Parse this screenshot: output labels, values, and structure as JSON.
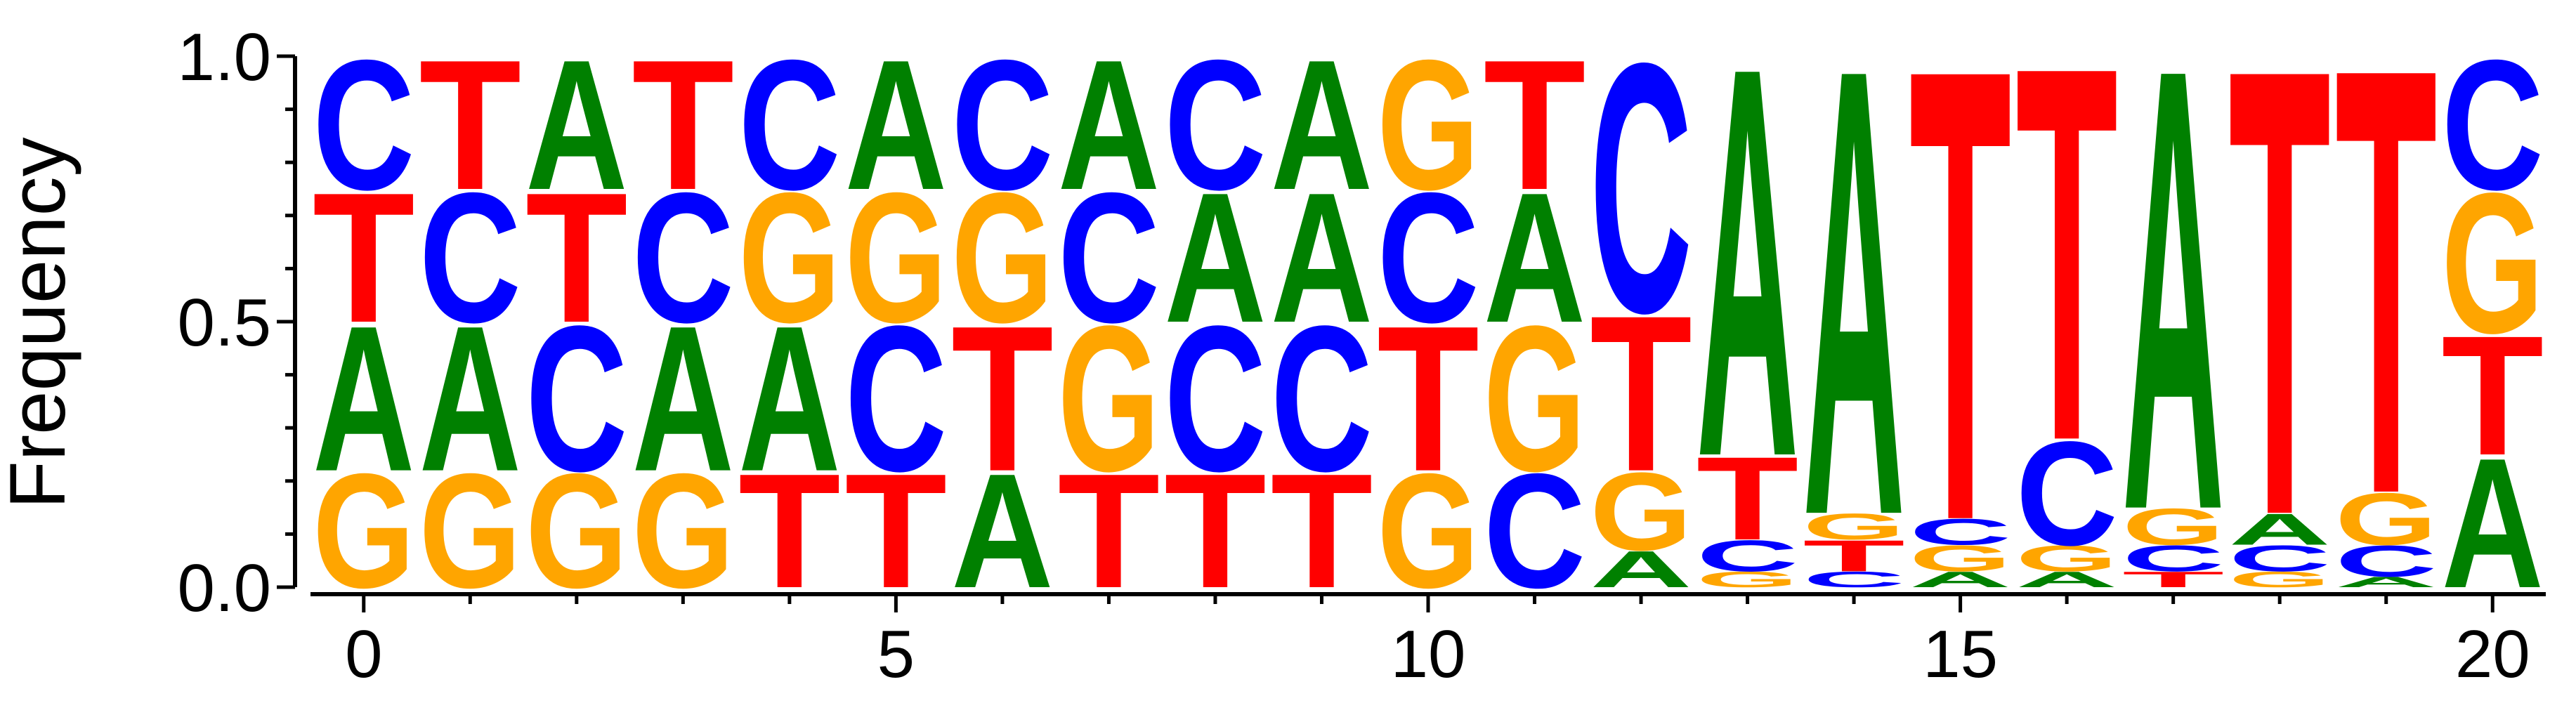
{
  "chart_data": {
    "type": "sequence-logo",
    "title": "",
    "xlabel": "",
    "ylabel": "Frequency",
    "xlim": [
      -0.5,
      20.5
    ],
    "ylim": [
      0,
      1.0
    ],
    "xticks": [
      "0",
      "5",
      "10",
      "15",
      "20"
    ],
    "xtick_values": [
      0,
      5,
      10,
      15,
      20
    ],
    "yticks": [
      "0.0",
      "0.5",
      "1.0"
    ],
    "ytick_values": [
      0.0,
      0.5,
      1.0
    ],
    "colors": {
      "A": "#008000",
      "C": "#0000ff",
      "G": "#ffa500",
      "T": "#ff0000"
    },
    "positions": [
      {
        "pos": 0,
        "stack": [
          [
            "G",
            0.22
          ],
          [
            "A",
            0.28
          ],
          [
            "T",
            0.25
          ],
          [
            "C",
            0.25
          ]
        ]
      },
      {
        "pos": 1,
        "stack": [
          [
            "G",
            0.22
          ],
          [
            "A",
            0.28
          ],
          [
            "C",
            0.25
          ],
          [
            "T",
            0.25
          ]
        ]
      },
      {
        "pos": 2,
        "stack": [
          [
            "G",
            0.22
          ],
          [
            "C",
            0.28
          ],
          [
            "T",
            0.25
          ],
          [
            "A",
            0.25
          ]
        ]
      },
      {
        "pos": 3,
        "stack": [
          [
            "G",
            0.22
          ],
          [
            "A",
            0.28
          ],
          [
            "C",
            0.25
          ],
          [
            "T",
            0.25
          ]
        ]
      },
      {
        "pos": 4,
        "stack": [
          [
            "T",
            0.22
          ],
          [
            "A",
            0.28
          ],
          [
            "G",
            0.25
          ],
          [
            "C",
            0.25
          ]
        ]
      },
      {
        "pos": 5,
        "stack": [
          [
            "T",
            0.22
          ],
          [
            "C",
            0.28
          ],
          [
            "G",
            0.25
          ],
          [
            "A",
            0.25
          ]
        ]
      },
      {
        "pos": 6,
        "stack": [
          [
            "A",
            0.22
          ],
          [
            "T",
            0.28
          ],
          [
            "G",
            0.25
          ],
          [
            "C",
            0.25
          ]
        ]
      },
      {
        "pos": 7,
        "stack": [
          [
            "T",
            0.22
          ],
          [
            "G",
            0.28
          ],
          [
            "C",
            0.25
          ],
          [
            "A",
            0.25
          ]
        ]
      },
      {
        "pos": 8,
        "stack": [
          [
            "T",
            0.22
          ],
          [
            "C",
            0.28
          ],
          [
            "A",
            0.25
          ],
          [
            "C",
            0.25
          ]
        ]
      },
      {
        "pos": 9,
        "stack": [
          [
            "T",
            0.22
          ],
          [
            "C",
            0.28
          ],
          [
            "A",
            0.25
          ],
          [
            "A",
            0.25
          ]
        ]
      },
      {
        "pos": 10,
        "stack": [
          [
            "G",
            0.22
          ],
          [
            "T",
            0.28
          ],
          [
            "C",
            0.25
          ],
          [
            "G",
            0.25
          ]
        ]
      },
      {
        "pos": 11,
        "stack": [
          [
            "C",
            0.22
          ],
          [
            "G",
            0.28
          ],
          [
            "A",
            0.25
          ],
          [
            "T",
            0.25
          ]
        ]
      },
      {
        "pos": 12,
        "stack": [
          [
            "A",
            0.07
          ],
          [
            "G",
            0.15
          ],
          [
            "T",
            0.3
          ],
          [
            "C",
            0.48
          ]
        ]
      },
      {
        "pos": 13,
        "stack": [
          [
            "G",
            0.03
          ],
          [
            "C",
            0.06
          ],
          [
            "T",
            0.16
          ],
          [
            "A",
            0.75
          ]
        ]
      },
      {
        "pos": 14,
        "stack": [
          [
            "C",
            0.03
          ],
          [
            "T",
            0.06
          ],
          [
            "G",
            0.05
          ],
          [
            "A",
            0.86
          ]
        ]
      },
      {
        "pos": 15,
        "stack": [
          [
            "A",
            0.03
          ],
          [
            "G",
            0.05
          ],
          [
            "C",
            0.05
          ],
          [
            "T",
            0.87
          ]
        ]
      },
      {
        "pos": 16,
        "stack": [
          [
            "A",
            0.03
          ],
          [
            "G",
            0.05
          ],
          [
            "C",
            0.2
          ],
          [
            "T",
            0.72
          ]
        ]
      },
      {
        "pos": 17,
        "stack": [
          [
            "T",
            0.03
          ],
          [
            "C",
            0.05
          ],
          [
            "G",
            0.07
          ],
          [
            "A",
            0.85
          ]
        ]
      },
      {
        "pos": 18,
        "stack": [
          [
            "G",
            0.03
          ],
          [
            "C",
            0.05
          ],
          [
            "A",
            0.06
          ],
          [
            "T",
            0.86
          ]
        ]
      },
      {
        "pos": 19,
        "stack": [
          [
            "A",
            0.02
          ],
          [
            "C",
            0.06
          ],
          [
            "G",
            0.1
          ],
          [
            "T",
            0.82
          ]
        ]
      },
      {
        "pos": 20,
        "stack": [
          [
            "A",
            0.25
          ],
          [
            "T",
            0.23
          ],
          [
            "G",
            0.27
          ],
          [
            "C",
            0.25
          ]
        ]
      }
    ]
  }
}
